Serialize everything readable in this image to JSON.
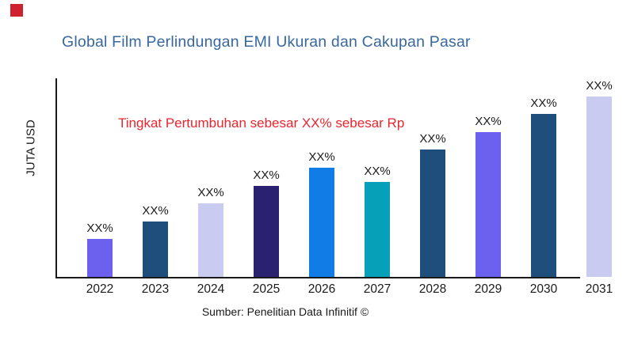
{
  "page": {
    "background_color": "#ffffff",
    "corner_marker_color": "#d0212e"
  },
  "title": {
    "text": "Global Film Perlindungan EMI Ukuran dan Cakupan Pasar",
    "color": "#38689d"
  },
  "annotation": {
    "text": "Tingkat Pertumbuhan sebesar XX% sebesar Rp",
    "color": "#e8262e"
  },
  "source": {
    "text": "Sumber: Penelitian Data Infinitif ©"
  },
  "chart_data": {
    "type": "bar",
    "title": "Global Film Perlindungan EMI Ukuran dan Cakupan Pasar",
    "xlabel": "",
    "ylabel": "JUTA USD",
    "categories": [
      "2022",
      "2023",
      "2024",
      "2025",
      "2026",
      "2027",
      "2028",
      "2029",
      "2030",
      "2031"
    ],
    "values": [
      19,
      28,
      37,
      46,
      55,
      48,
      64,
      73,
      82,
      91
    ],
    "value_labels": [
      "XX%",
      "XX%",
      "XX%",
      "XX%",
      "XX%",
      "XX%",
      "XX%",
      "XX%",
      "XX%",
      "XX%"
    ],
    "bar_colors": [
      "#6c61ee",
      "#1f4e7c",
      "#c9cbf0",
      "#2a2170",
      "#117ce6",
      "#06a1b8",
      "#1f4e7c",
      "#6c61ee",
      "#1f4e7c",
      "#c9cbf0"
    ],
    "ylim": [
      0,
      100
    ],
    "y_ticks_visible": false,
    "grid": false,
    "legend": "none",
    "axis_color": "#1a1a1a",
    "annotation_text": "Tingkat Pertumbuhan sebesar XX% sebesar Rp"
  }
}
